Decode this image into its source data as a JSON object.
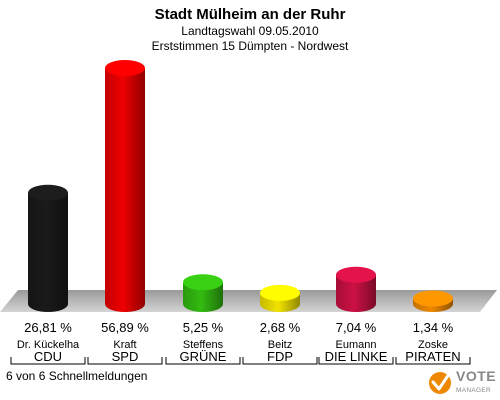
{
  "header": {
    "title": "Stadt Mülheim an der Ruhr",
    "subtitle1": "Landtagswahl 09.05.2010",
    "subtitle2": "Erststimmen 15 Dümpten - Nordwest"
  },
  "chart_data": {
    "type": "bar",
    "title": "Stadt Mülheim an der Ruhr",
    "categories": [
      "CDU",
      "SPD",
      "GRÜNE",
      "FDP",
      "DIE LINKE",
      "PIRATEN"
    ],
    "candidates": [
      "Dr. Kückelha",
      "Kraft",
      "Steffens",
      "Beitz",
      "Eumann",
      "Zoske"
    ],
    "values": [
      26.81,
      56.89,
      5.25,
      2.68,
      7.04,
      1.34
    ],
    "value_labels": [
      "26,81 %",
      "56,89 %",
      "5,25 %",
      "2,68 %",
      "7,04 %",
      "1,34 %"
    ],
    "colors": [
      "#1a1a1a",
      "#ee0000",
      "#33bb11",
      "#f2e200",
      "#cc1144",
      "#ee8800"
    ],
    "ylim": [
      0,
      60
    ],
    "grid": false
  },
  "footer": {
    "note": "6 von 6 Schnellmeldungen"
  },
  "logo": {
    "line1": "VOTE",
    "line2": "MANAGER"
  }
}
